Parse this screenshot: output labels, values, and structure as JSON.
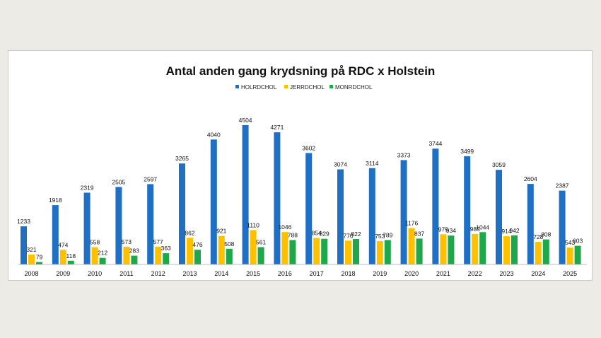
{
  "chart_data": {
    "type": "bar",
    "title": "Antal anden gang krydsning på RDC x Holstein",
    "xlabel": "",
    "ylabel": "",
    "ylim": [
      0,
      4800
    ],
    "grid": false,
    "legend_position": "top-center",
    "categories": [
      "2008",
      "2009",
      "2010",
      "2011",
      "2012",
      "2013",
      "2014",
      "2015",
      "2016",
      "2017",
      "2018",
      "2019",
      "2020",
      "2021",
      "2022",
      "2023",
      "2024",
      "2025"
    ],
    "series": [
      {
        "name": "HOLRDCHOL",
        "color": "#1f6fc5",
        "values": [
          1233,
          1918,
          2319,
          2505,
          2597,
          3265,
          4040,
          4504,
          4271,
          3602,
          3074,
          3114,
          3373,
          3744,
          3499,
          3059,
          2604,
          2387
        ]
      },
      {
        "name": "JERRDCHOL",
        "color": "#ffc000",
        "values": [
          321,
          474,
          558,
          573,
          577,
          862,
          921,
          1110,
          1046,
          854,
          770,
          753,
          1176,
          975,
          985,
          914,
          728,
          543
        ]
      },
      {
        "name": "MONRDCHOL",
        "color": "#1ea84a",
        "values": [
          79,
          118,
          212,
          283,
          363,
          476,
          508,
          561,
          788,
          829,
          822,
          789,
          837,
          934,
          1044,
          942,
          808,
          603
        ]
      }
    ]
  }
}
